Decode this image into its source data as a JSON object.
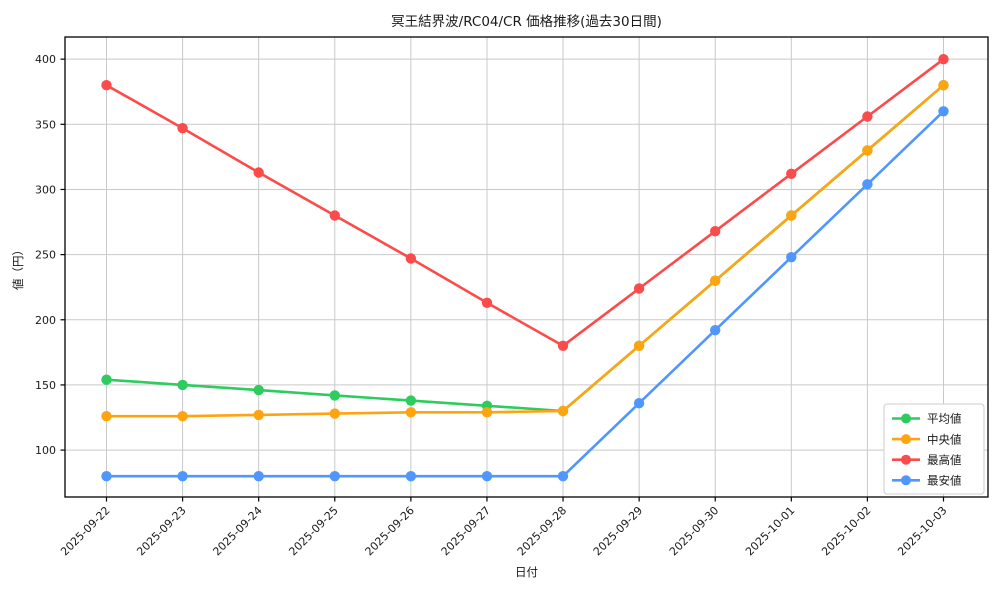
{
  "chart_data": {
    "type": "line",
    "title": "冥王結界波/RC04/CR 価格推移(過去30日間)",
    "xlabel": "日付",
    "ylabel": "値（円）",
    "x": [
      "2025-09-22",
      "2025-09-23",
      "2025-09-24",
      "2025-09-25",
      "2025-09-26",
      "2025-09-27",
      "2025-09-28",
      "2025-09-29",
      "2025-09-30",
      "2025-10-01",
      "2025-10-02",
      "2025-10-03"
    ],
    "series": [
      {
        "key": "average",
        "name": "平均値",
        "color": "#2ecc5f",
        "values": [
          154,
          150,
          146,
          142,
          138,
          134,
          130,
          180,
          230,
          280,
          330,
          380
        ],
        "note_visible": "hidden beneath median line from 2025-09-28 onward"
      },
      {
        "key": "median",
        "name": "中央値",
        "color": "#ffa411",
        "values": [
          126,
          126,
          127,
          128,
          129,
          129,
          130,
          180,
          230,
          280,
          330,
          380
        ]
      },
      {
        "key": "max",
        "name": "最高値",
        "color": "#fb4b4b",
        "values": [
          380,
          347,
          313,
          280,
          247,
          213,
          180,
          224,
          268,
          312,
          356,
          400
        ]
      },
      {
        "key": "min",
        "name": "最安値",
        "color": "#4f96ff",
        "values": [
          80,
          80,
          80,
          80,
          80,
          80,
          80,
          136,
          192,
          248,
          304,
          360
        ]
      }
    ],
    "yticks": [
      100,
      150,
      200,
      250,
      300,
      350,
      400
    ],
    "ylim": [
      64,
      417
    ],
    "grid": true,
    "grid_color": "#c9c9c9",
    "axis_color": "#000000",
    "background_color": "#ffffff",
    "legend_position": "lower right",
    "legend_entries": [
      "平均値",
      "中央値",
      "最高値",
      "最安値"
    ]
  }
}
